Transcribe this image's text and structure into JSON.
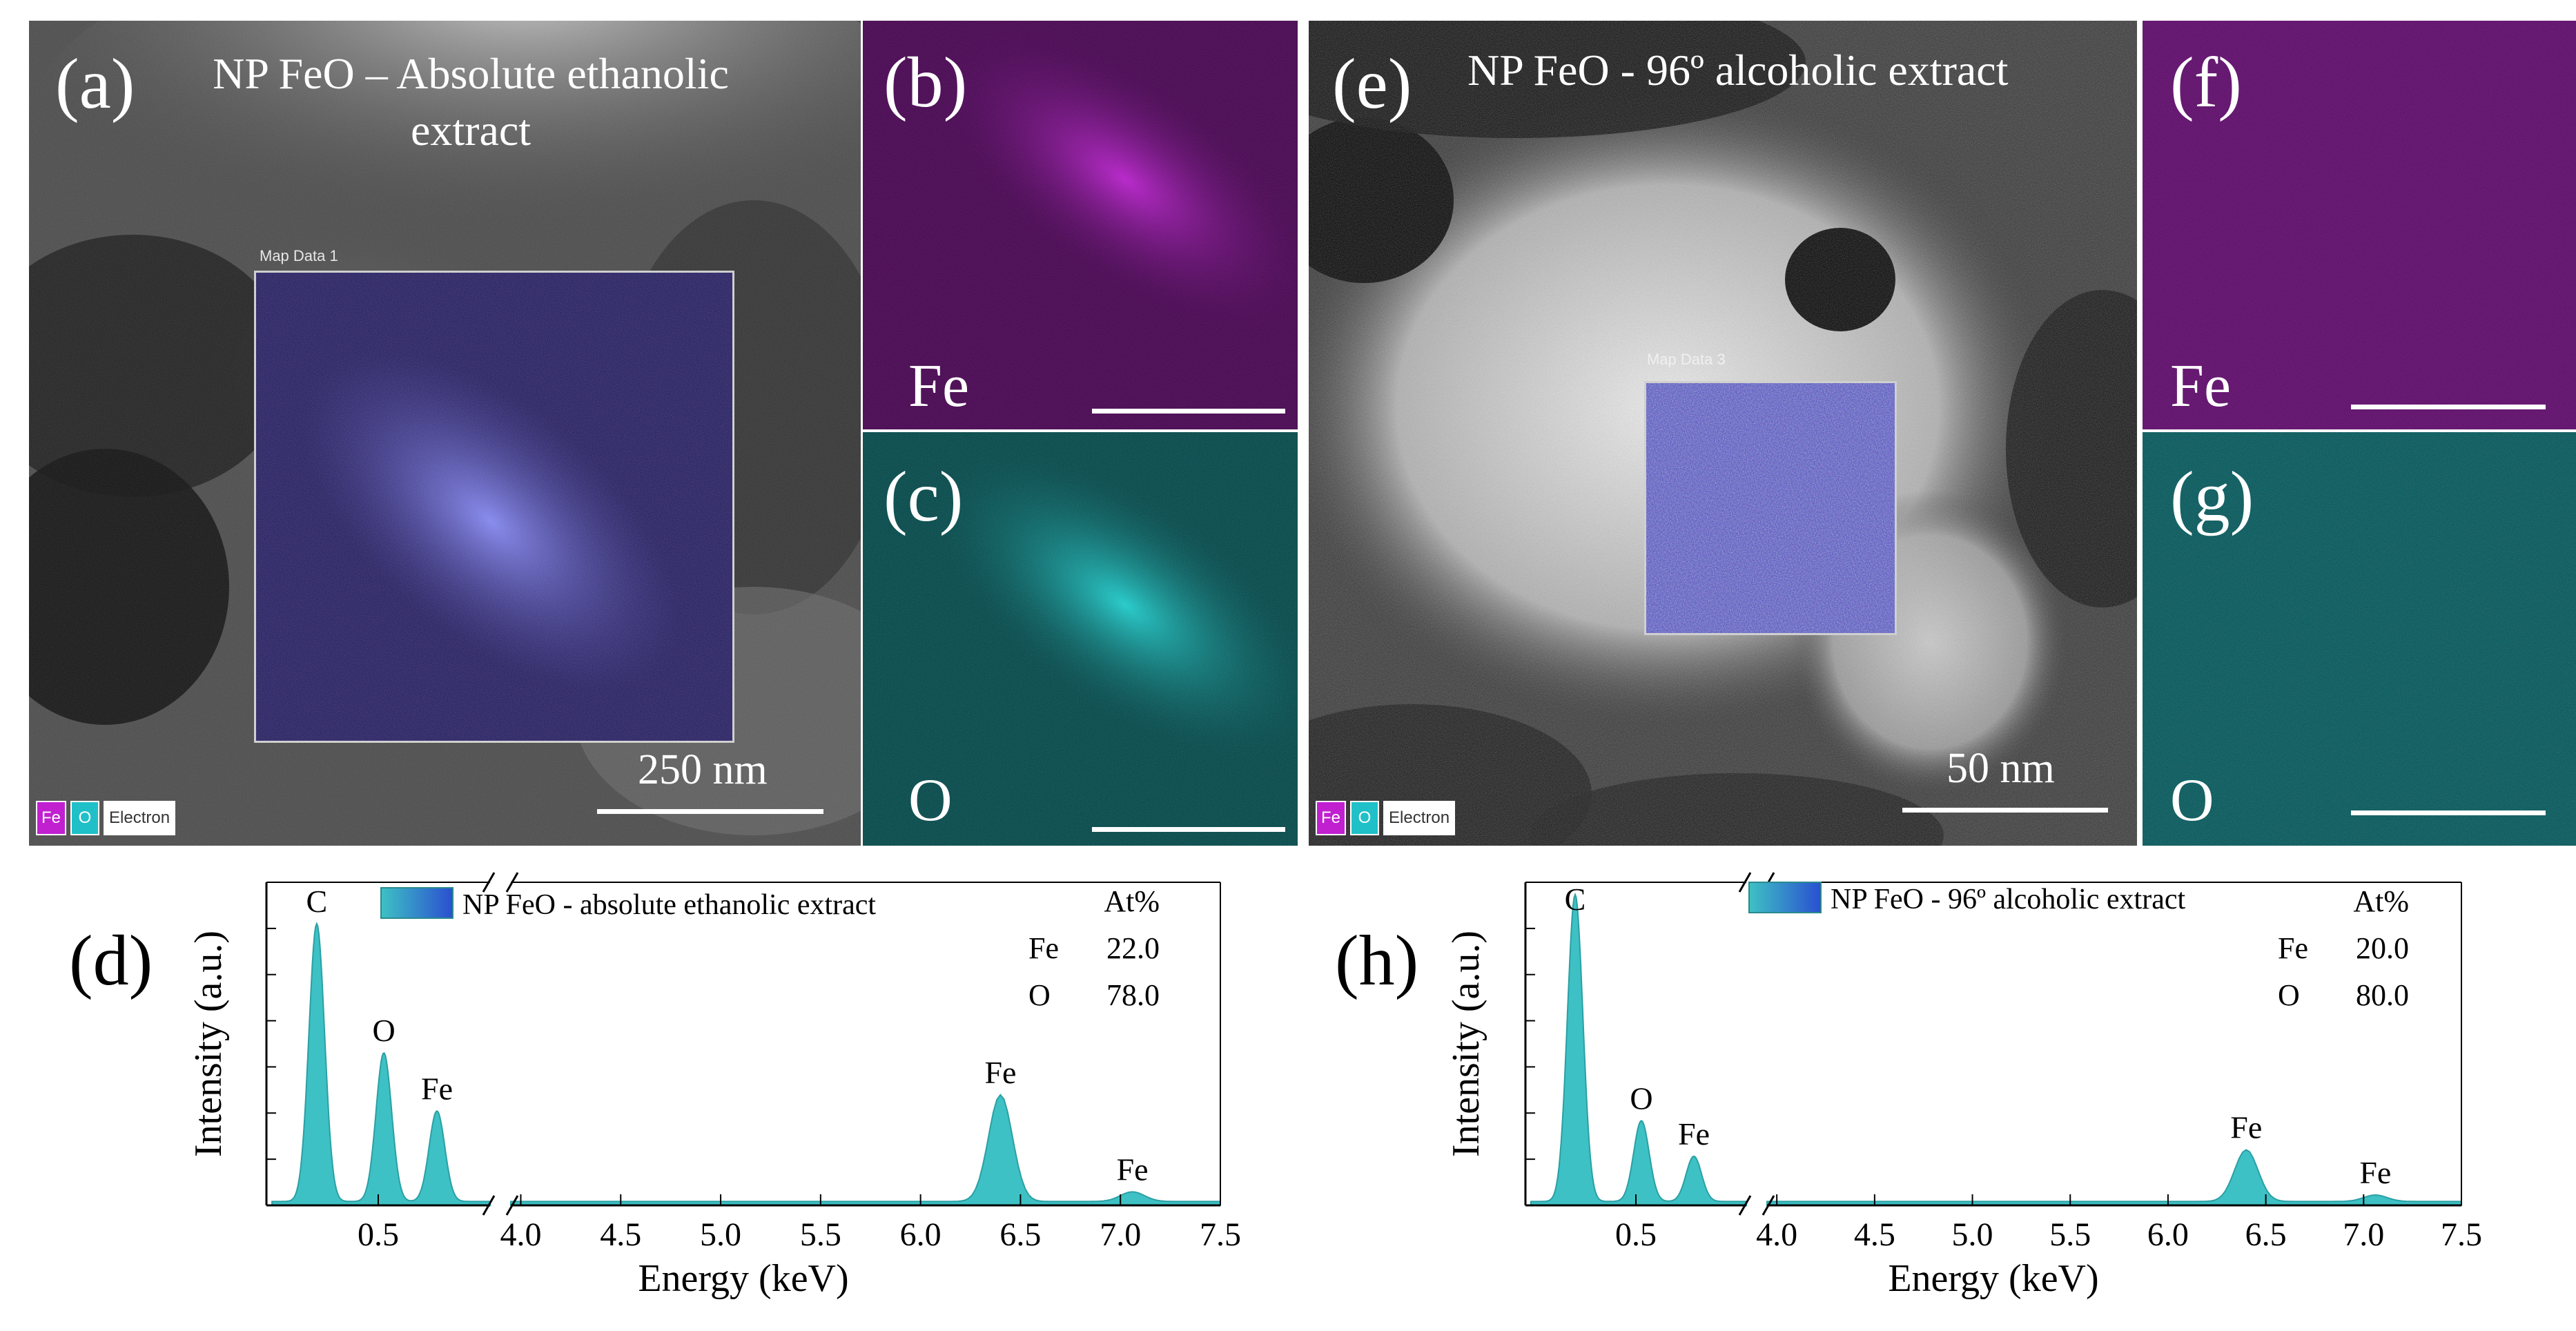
{
  "panels": {
    "a": {
      "label": "(a)",
      "title": "NP FeO – Absolute ethanolic extract",
      "map_title": "Map Data 1",
      "scale": "250 nm"
    },
    "b": {
      "label": "(b)",
      "element": "Fe"
    },
    "c": {
      "label": "(c)",
      "element": "O"
    },
    "e": {
      "label": "(e)",
      "title": "NP FeO - 96º alcoholic extract",
      "map_title": "Map Data 3",
      "scale": "50 nm"
    },
    "f": {
      "label": "(f)",
      "element": "Fe"
    },
    "g": {
      "label": "(g)",
      "element": "O"
    }
  },
  "legend": {
    "fe": "Fe",
    "o": "O",
    "electron": "Electron"
  },
  "colors": {
    "fe_map": "#a020c8",
    "o_map": "#20d0d0",
    "spectrum_fill": "#3ec1c4",
    "spectrum_edge": "#2aa0a4"
  },
  "chart_data": [
    {
      "type": "area",
      "panel_label": "(d)",
      "legend": "NP FeO - absolute ethanolic extract",
      "xlabel": "Energy (keV)",
      "ylabel": "Intensity (a.u.)",
      "xticks_low": [
        "0.5"
      ],
      "xticks_high": [
        "4.0",
        "4.5",
        "5.0",
        "5.5",
        "6.0",
        "6.5",
        "7.0",
        "7.5"
      ],
      "axis_break": "0.9 → 3.95 keV",
      "composition": {
        "header": "At%",
        "rows": [
          {
            "element": "Fe",
            "value": "22.0"
          },
          {
            "element": "O",
            "value": "78.0"
          }
        ]
      },
      "peaks": [
        {
          "label": "C",
          "energy": 0.28,
          "height": 0.86
        },
        {
          "label": "O",
          "energy": 0.52,
          "height": 0.46
        },
        {
          "label": "Fe",
          "energy": 0.71,
          "height": 0.28
        },
        {
          "label": "Fe",
          "energy": 6.4,
          "height": 0.33
        },
        {
          "label": "Fe",
          "energy": 7.06,
          "height": 0.03
        }
      ]
    },
    {
      "type": "area",
      "panel_label": "(h)",
      "legend": "NP FeO - 96º alcoholic extract",
      "xlabel": "Energy (keV)",
      "ylabel": "Intensity (a.u.)",
      "xticks_low": [
        "0.5"
      ],
      "xticks_high": [
        "4.0",
        "4.5",
        "5.0",
        "5.5",
        "6.0",
        "6.5",
        "7.0",
        "7.5"
      ],
      "axis_break": "0.9 → 3.95 keV",
      "composition": {
        "header": "At%",
        "rows": [
          {
            "element": "Fe",
            "value": "20.0"
          },
          {
            "element": "O",
            "value": "80.0"
          }
        ]
      },
      "peaks": [
        {
          "label": "C",
          "energy": 0.28,
          "height": 0.95
        },
        {
          "label": "O",
          "energy": 0.52,
          "height": 0.25
        },
        {
          "label": "Fe",
          "energy": 0.71,
          "height": 0.14
        },
        {
          "label": "Fe",
          "energy": 6.4,
          "height": 0.16
        },
        {
          "label": "Fe",
          "energy": 7.06,
          "height": 0.02
        }
      ]
    }
  ]
}
